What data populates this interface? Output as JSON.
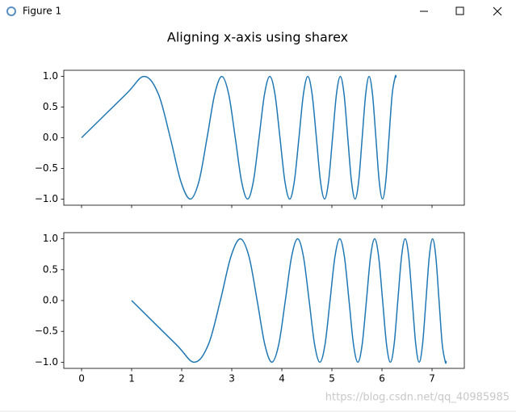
{
  "window": {
    "title": "Figure 1"
  },
  "suptitle": "Aligning x-axis using sharex",
  "watermark": "https://blog.csdn.net/qq_40985985",
  "chart_data": [
    {
      "type": "line",
      "x": [
        0,
        0.886,
        1.253,
        1.535,
        1.772,
        1.982,
        2.171,
        2.345,
        2.507,
        2.659,
        2.802,
        2.939,
        3.07,
        3.195,
        3.316,
        3.432,
        3.545,
        3.654,
        3.76,
        3.863,
        3.963,
        4.061,
        4.157,
        4.25,
        4.342,
        4.431,
        4.519,
        4.605,
        4.69,
        4.772,
        4.854,
        4.934,
        5.013,
        5.091,
        5.168,
        5.243,
        5.317,
        5.391,
        5.463,
        5.535,
        5.605,
        5.675,
        5.743,
        5.811,
        5.879,
        5.945,
        6.011,
        6.076,
        6.14,
        6.204,
        6.267,
        6.283
      ],
      "series": [
        {
          "color": "#1f77b4",
          "values": [
            0,
            0.71,
            1,
            0.71,
            0,
            -0.71,
            -1,
            -0.71,
            0,
            0.71,
            1,
            0.71,
            0,
            -0.71,
            -1,
            -0.71,
            0,
            0.71,
            1,
            0.71,
            0,
            -0.71,
            -1,
            -0.71,
            0,
            0.71,
            1,
            0.71,
            0,
            -0.71,
            -1,
            -0.71,
            0,
            0.71,
            1,
            0.71,
            0,
            -0.71,
            -1,
            -0.71,
            0,
            0.71,
            1,
            0.71,
            0,
            -0.71,
            -1,
            -0.71,
            0,
            0.71,
            1,
            0.98
          ]
        }
      ],
      "xlim": [
        -0.355,
        7.645
      ],
      "xticks": [
        0,
        1,
        2,
        3,
        4,
        5,
        6,
        7
      ],
      "show_xtick_labels": false,
      "ylim": [
        -1.1,
        1.1
      ],
      "yticks": [
        {
          "value": -1,
          "label": "−1.0"
        },
        {
          "value": -0.5,
          "label": "−0.5"
        },
        {
          "value": 0,
          "label": "0.0"
        },
        {
          "value": 0.5,
          "label": "0.5"
        },
        {
          "value": 1,
          "label": "1.0"
        }
      ]
    },
    {
      "type": "line",
      "x": [
        1,
        1.886,
        2.253,
        2.535,
        2.772,
        2.982,
        3.171,
        3.345,
        3.507,
        3.659,
        3.802,
        3.939,
        4.07,
        4.195,
        4.316,
        4.432,
        4.545,
        4.654,
        4.76,
        4.863,
        4.963,
        5.061,
        5.157,
        5.25,
        5.342,
        5.431,
        5.519,
        5.605,
        5.69,
        5.772,
        5.854,
        5.934,
        6.013,
        6.091,
        6.168,
        6.243,
        6.317,
        6.391,
        6.463,
        6.535,
        6.605,
        6.675,
        6.743,
        6.811,
        6.879,
        6.945,
        7.011,
        7.076,
        7.14,
        7.204,
        7.267,
        7.283
      ],
      "series": [
        {
          "color": "#1f77b4",
          "values": [
            0,
            -0.71,
            -1,
            -0.71,
            0,
            0.71,
            1,
            0.71,
            0,
            -0.71,
            -1,
            -0.71,
            0,
            0.71,
            1,
            0.71,
            0,
            -0.71,
            -1,
            -0.71,
            0,
            0.71,
            1,
            0.71,
            0,
            -0.71,
            -1,
            -0.71,
            0,
            0.71,
            1,
            0.71,
            0,
            -0.71,
            -1,
            -0.71,
            0,
            0.71,
            1,
            0.71,
            0,
            -0.71,
            -1,
            -0.71,
            0,
            0.71,
            1,
            0.71,
            0,
            -0.71,
            -1,
            -0.98
          ]
        }
      ],
      "xlim": [
        -0.355,
        7.645
      ],
      "xticks": [
        0,
        1,
        2,
        3,
        4,
        5,
        6,
        7
      ],
      "show_xtick_labels": true,
      "ylim": [
        -1.1,
        1.1
      ],
      "yticks": [
        {
          "value": -1,
          "label": "−1.0"
        },
        {
          "value": -0.5,
          "label": "−0.5"
        },
        {
          "value": 0,
          "label": "0.0"
        },
        {
          "value": 0.5,
          "label": "0.5"
        },
        {
          "value": 1,
          "label": "1.0"
        }
      ]
    }
  ]
}
